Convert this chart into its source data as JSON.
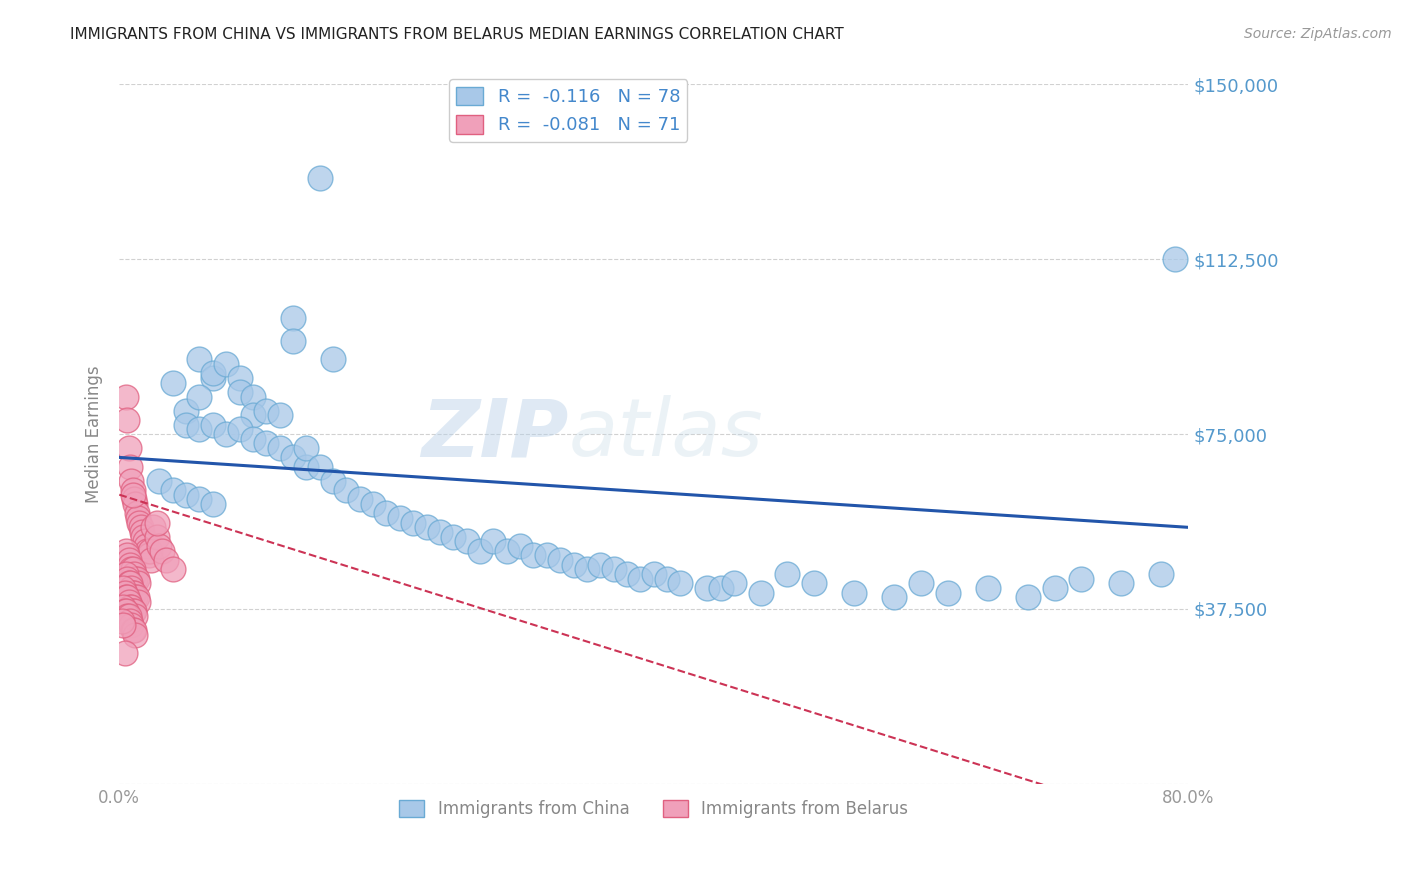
{
  "title": "IMMIGRANTS FROM CHINA VS IMMIGRANTS FROM BELARUS MEDIAN EARNINGS CORRELATION CHART",
  "source": "Source: ZipAtlas.com",
  "ylabel": "Median Earnings",
  "xlim": [
    0,
    0.8
  ],
  "ylim": [
    0,
    150000
  ],
  "yticks": [
    0,
    37500,
    75000,
    112500,
    150000
  ],
  "ytick_labels": [
    "",
    "$37,500",
    "$75,000",
    "$112,500",
    "$150,000"
  ],
  "xticks": [
    0.0,
    0.1,
    0.2,
    0.3,
    0.4,
    0.5,
    0.6,
    0.7,
    0.8
  ],
  "xtick_labels": [
    "0.0%",
    "",
    "",
    "",
    "",
    "",
    "",
    "",
    "80.0%"
  ],
  "legend_label1": "Immigrants from China",
  "legend_label2": "Immigrants from Belarus",
  "R1": -0.116,
  "N1": 78,
  "R2": -0.081,
  "N2": 71,
  "color_china": "#a8c8e8",
  "color_china_edge": "#6aaad4",
  "color_belarus": "#f0a0ba",
  "color_belarus_edge": "#e06080",
  "color_trendline_china": "#2255aa",
  "color_trendline_belarus": "#cc3355",
  "background_color": "#ffffff",
  "grid_color": "#cccccc",
  "title_color": "#222222",
  "watermark_color": "#c8dff0",
  "china_x": [
    0.13,
    0.13,
    0.15,
    0.16,
    0.06,
    0.07,
    0.04,
    0.05,
    0.06,
    0.07,
    0.08,
    0.09,
    0.09,
    0.1,
    0.1,
    0.11,
    0.12,
    0.05,
    0.06,
    0.07,
    0.08,
    0.09,
    0.1,
    0.11,
    0.12,
    0.13,
    0.14,
    0.14,
    0.15,
    0.16,
    0.17,
    0.18,
    0.19,
    0.2,
    0.21,
    0.22,
    0.23,
    0.24,
    0.25,
    0.26,
    0.27,
    0.28,
    0.29,
    0.3,
    0.31,
    0.32,
    0.33,
    0.34,
    0.35,
    0.36,
    0.37,
    0.38,
    0.39,
    0.4,
    0.41,
    0.42,
    0.44,
    0.45,
    0.46,
    0.48,
    0.5,
    0.52,
    0.55,
    0.58,
    0.6,
    0.62,
    0.65,
    0.68,
    0.7,
    0.72,
    0.75,
    0.78,
    0.79,
    0.03,
    0.04,
    0.05,
    0.06,
    0.07
  ],
  "china_y": [
    100000,
    95000,
    130000,
    91000,
    91000,
    87000,
    86000,
    80000,
    83000,
    88000,
    90000,
    87000,
    84000,
    83000,
    79000,
    80000,
    79000,
    77000,
    76000,
    77000,
    75000,
    76000,
    74000,
    73000,
    72000,
    70000,
    68000,
    72000,
    68000,
    65000,
    63000,
    61000,
    60000,
    58000,
    57000,
    56000,
    55000,
    54000,
    53000,
    52000,
    50000,
    52000,
    50000,
    51000,
    49000,
    49000,
    48000,
    47000,
    46000,
    47000,
    46000,
    45000,
    44000,
    45000,
    44000,
    43000,
    42000,
    42000,
    43000,
    41000,
    45000,
    43000,
    41000,
    40000,
    43000,
    41000,
    42000,
    40000,
    42000,
    44000,
    43000,
    45000,
    112500,
    65000,
    63000,
    62000,
    61000,
    60000
  ],
  "belarus_x": [
    0.005,
    0.006,
    0.007,
    0.008,
    0.009,
    0.01,
    0.011,
    0.012,
    0.013,
    0.014,
    0.015,
    0.016,
    0.017,
    0.018,
    0.019,
    0.02,
    0.021,
    0.022,
    0.023,
    0.024,
    0.005,
    0.006,
    0.007,
    0.008,
    0.009,
    0.01,
    0.011,
    0.012,
    0.013,
    0.014,
    0.005,
    0.006,
    0.007,
    0.008,
    0.009,
    0.01,
    0.011,
    0.012,
    0.013,
    0.014,
    0.003,
    0.004,
    0.005,
    0.006,
    0.007,
    0.008,
    0.009,
    0.01,
    0.011,
    0.012,
    0.003,
    0.004,
    0.005,
    0.006,
    0.007,
    0.008,
    0.009,
    0.01,
    0.011,
    0.012,
    0.002,
    0.003,
    0.004,
    0.025,
    0.028,
    0.03,
    0.032,
    0.035,
    0.04,
    0.028,
    0.01
  ],
  "belarus_y": [
    83000,
    78000,
    72000,
    68000,
    65000,
    63000,
    61000,
    60000,
    58000,
    57000,
    56000,
    55000,
    54000,
    53000,
    52000,
    51000,
    50000,
    49000,
    50000,
    48000,
    50000,
    49000,
    48000,
    47000,
    46000,
    46000,
    45000,
    44000,
    44000,
    43000,
    45000,
    44000,
    43000,
    43000,
    42000,
    41000,
    41000,
    40000,
    40000,
    39000,
    42000,
    41000,
    40000,
    40000,
    39000,
    38000,
    38000,
    37000,
    37000,
    36000,
    38000,
    37000,
    37000,
    36000,
    36000,
    35000,
    34000,
    33000,
    33000,
    32000,
    35000,
    34000,
    28000,
    55000,
    53000,
    51000,
    50000,
    48000,
    46000,
    56000,
    62000
  ]
}
